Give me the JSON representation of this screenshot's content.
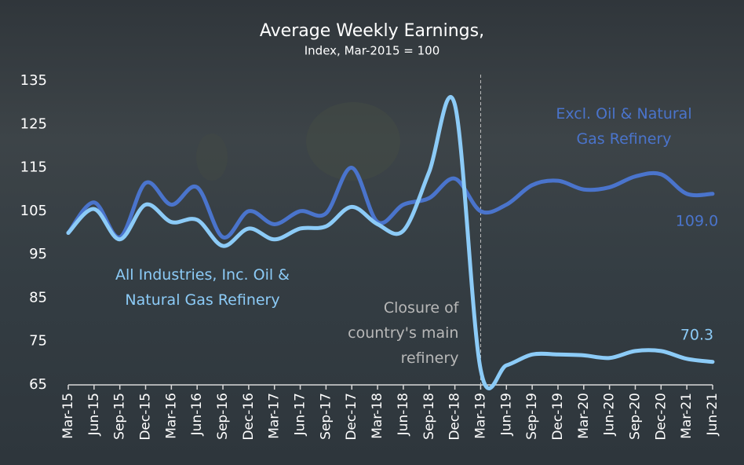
{
  "chart_data": {
    "type": "line",
    "title": "Average Weekly Earnings,",
    "subtitle": "Index, Mar-2015 = 100",
    "categories": [
      "Mar-15",
      "Jun-15",
      "Sep-15",
      "Dec-15",
      "Mar-16",
      "Jun-16",
      "Sep-16",
      "Dec-16",
      "Mar-17",
      "Jun-17",
      "Sep-17",
      "Dec-17",
      "Mar-18",
      "Jun-18",
      "Sep-18",
      "Dec-18",
      "Mar-19",
      "Jun-19",
      "Sep-19",
      "Dec-19",
      "Mar-20",
      "Jun-20",
      "Sep-20",
      "Dec-20",
      "Mar-21",
      "Jun-21"
    ],
    "series": [
      {
        "name": [
          "Excl. Oil & Natural",
          "Gas Refinery"
        ],
        "color": "#4a74cc",
        "values": [
          100,
          107,
          99,
          111.5,
          106.5,
          110.5,
          99,
          105,
          102,
          105,
          104.5,
          115,
          102.5,
          106.5,
          108,
          112.5,
          105,
          106.5,
          111,
          112,
          110,
          110.5,
          113,
          113.5,
          109,
          109.0
        ],
        "value_labels": [
          null,
          null,
          null,
          null,
          null,
          null,
          null,
          null,
          null,
          null,
          null,
          null,
          null,
          null,
          null,
          null,
          null,
          null,
          null,
          null,
          null,
          null,
          null,
          null,
          null,
          "109.0"
        ]
      },
      {
        "name": [
          "All Industries, Inc. Oil &",
          "Natural Gas Refinery"
        ],
        "color": "#8ccbf7",
        "values": [
          100,
          105.5,
          98.5,
          106.5,
          102.5,
          103,
          97,
          101,
          98.5,
          101,
          101.5,
          106,
          102,
          100.5,
          114,
          129.5,
          68.5,
          69.5,
          72,
          72,
          71.8,
          71.2,
          72.8,
          72.8,
          71,
          70.3
        ],
        "value_labels": [
          null,
          null,
          null,
          null,
          null,
          null,
          null,
          null,
          null,
          null,
          null,
          null,
          null,
          null,
          null,
          null,
          null,
          null,
          null,
          null,
          null,
          null,
          null,
          null,
          null,
          "70.3"
        ]
      }
    ],
    "annotations": [
      {
        "text": [
          "Closure of",
          "country's main",
          "refinery"
        ],
        "x": "Mar-19"
      }
    ],
    "ylim": [
      65,
      135
    ],
    "yticks": [
      65,
      75,
      85,
      95,
      105,
      115,
      125,
      135
    ],
    "grid": false
  }
}
